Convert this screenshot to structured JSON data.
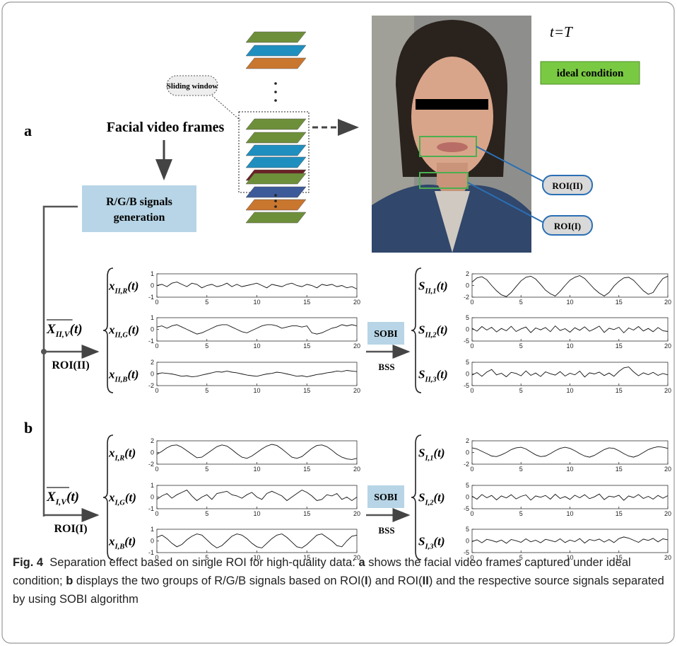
{
  "panel_a": {
    "label": "a",
    "facial_video_frames": "Facial video frames",
    "signals_generation": [
      "R/G/B signals",
      "generation"
    ],
    "sliding_window": "Sliding window",
    "time_label": "t=T",
    "ideal_condition": "ideal condition",
    "roi_2": "ROI(II)",
    "roi_1": "ROI(I)"
  },
  "panel_b": {
    "label": "b",
    "x": [
      0,
      0.5,
      1,
      1.5,
      2,
      2.5,
      3,
      3.5,
      4,
      4.5,
      5,
      5.5,
      6,
      6.5,
      7,
      7.5,
      8,
      8.5,
      9,
      9.5,
      10,
      10.5,
      11,
      11.5,
      12,
      12.5,
      13,
      13.5,
      14,
      14.5,
      15,
      15.5,
      16,
      16.5,
      17,
      17.5,
      18,
      18.5,
      19,
      19.5,
      20
    ],
    "groups": [
      {
        "input_label": {
          "symbol": "X",
          "sub": "II,V",
          "arg": "(t)"
        },
        "roi": "ROI(II)",
        "method": "SOBI",
        "bss": "BSS",
        "inputs": [
          {
            "label": {
              "symbol": "x",
              "sub": "II,R",
              "arg": "(t)"
            },
            "xlim": [
              0,
              20
            ],
            "xticks": [
              0,
              5,
              10,
              15,
              20
            ],
            "ylim": [
              -1,
              1
            ],
            "yticks": [
              -1,
              0,
              1
            ],
            "values": [
              0.0,
              0.1,
              -0.1,
              0.2,
              0.3,
              0.1,
              -0.1,
              0.2,
              0.1,
              -0.2,
              0.0,
              0.1,
              -0.1,
              0.0,
              0.2,
              -0.1,
              0.1,
              -0.1,
              0.0,
              0.1,
              0.2,
              0.0,
              -0.2,
              0.1,
              0.0,
              -0.1,
              0.1,
              0.2,
              0.0,
              -0.1,
              0.1,
              0.0,
              -0.2,
              0.1,
              0.0,
              0.1,
              -0.1,
              0.0,
              -0.2,
              -0.1,
              -0.3
            ]
          },
          {
            "label": {
              "symbol": "x",
              "sub": "II,G",
              "arg": "(t)"
            },
            "xlim": [
              0,
              20
            ],
            "xticks": [
              0,
              5,
              10,
              15,
              20
            ],
            "ylim": [
              -1,
              1
            ],
            "yticks": [
              -1,
              0,
              1
            ],
            "values": [
              0.2,
              0.3,
              0.1,
              0.3,
              0.4,
              0.2,
              0.0,
              -0.2,
              -0.4,
              -0.3,
              -0.1,
              0.1,
              0.3,
              0.4,
              0.4,
              0.2,
              0.0,
              -0.2,
              -0.3,
              -0.1,
              0.1,
              0.3,
              0.4,
              0.4,
              0.3,
              0.1,
              0.2,
              0.3,
              0.3,
              0.2,
              0.3,
              -0.3,
              -0.4,
              -0.3,
              -0.1,
              0.1,
              0.2,
              0.4,
              0.3,
              0.4,
              0.3
            ]
          },
          {
            "label": {
              "symbol": "x",
              "sub": "II,B",
              "arg": "(t)"
            },
            "xlim": [
              0,
              20
            ],
            "xticks": [
              0,
              5,
              10,
              15,
              20
            ],
            "ylim": [
              -2,
              2
            ],
            "yticks": [
              -2,
              0,
              2
            ],
            "values": [
              0.0,
              0.2,
              0.1,
              0.0,
              -0.2,
              -0.4,
              -0.3,
              -0.5,
              -0.4,
              -0.2,
              0.0,
              0.2,
              0.4,
              0.3,
              0.5,
              0.3,
              0.2,
              0.0,
              -0.2,
              -0.3,
              -0.4,
              -0.2,
              0.0,
              0.1,
              0.3,
              0.2,
              0.0,
              -0.2,
              -0.4,
              -0.3,
              -0.5,
              -0.3,
              -0.1,
              0.0,
              0.2,
              0.3,
              0.5,
              0.4,
              0.6,
              0.5,
              0.4
            ]
          }
        ],
        "sources": [
          {
            "label": {
              "symbol": "S",
              "sub": "II,1",
              "arg": "(t)"
            },
            "xlim": [
              0,
              20
            ],
            "xticks": [
              0,
              5,
              10,
              15,
              20
            ],
            "ylim": [
              -2,
              2
            ],
            "yticks": [
              -2,
              0,
              2
            ],
            "values": [
              0.6,
              1.3,
              1.5,
              1.0,
              0.0,
              -0.9,
              -1.6,
              -1.9,
              -1.2,
              -0.2,
              0.8,
              1.4,
              1.6,
              1.1,
              0.2,
              -0.8,
              -1.4,
              -1.8,
              -1.0,
              0.0,
              0.9,
              1.4,
              1.7,
              1.2,
              0.3,
              -0.6,
              -1.3,
              -1.8,
              -1.2,
              -0.1,
              0.7,
              1.3,
              1.4,
              0.9,
              0.0,
              -0.9,
              -1.5,
              -1.2,
              0.1,
              1.2,
              1.6
            ]
          },
          {
            "label": {
              "symbol": "S",
              "sub": "II,2",
              "arg": "(t)"
            },
            "xlim": [
              0,
              20
            ],
            "xticks": [
              0,
              5,
              10,
              15,
              20
            ],
            "ylim": [
              -5,
              5
            ],
            "yticks": [
              -5,
              0,
              5
            ],
            "values": [
              0.5,
              -0.8,
              1.2,
              -0.3,
              0.9,
              -1.1,
              0.4,
              -0.6,
              1.3,
              -0.9,
              0.2,
              1.0,
              -1.4,
              0.6,
              -0.2,
              0.8,
              -1.0,
              1.5,
              -0.5,
              0.3,
              -1.2,
              0.7,
              -0.4,
              1.1,
              -0.8,
              0.2,
              1.4,
              -1.3,
              0.5,
              -0.1,
              0.9,
              -1.5,
              0.6,
              -0.3,
              1.2,
              -0.7,
              0.4,
              -1.0,
              0.8,
              -0.6,
              -0.9
            ]
          },
          {
            "label": {
              "symbol": "S",
              "sub": "II,3",
              "arg": "(t)"
            },
            "xlim": [
              0,
              20
            ],
            "xticks": [
              0,
              5,
              10,
              15,
              20
            ],
            "ylim": [
              -5,
              5
            ],
            "yticks": [
              -5,
              0,
              5
            ],
            "values": [
              -0.5,
              0.6,
              -1.0,
              0.8,
              1.9,
              -0.4,
              0.3,
              -1.2,
              0.7,
              0.2,
              -0.8,
              1.3,
              -0.6,
              0.4,
              -1.1,
              0.9,
              0.1,
              -0.5,
              1.0,
              -0.9,
              0.3,
              -0.4,
              1.2,
              -1.3,
              0.5,
              0.0,
              0.8,
              -0.7,
              0.4,
              -1.0,
              1.1,
              2.6,
              3.0,
              0.9,
              -0.8,
              0.5,
              -0.3,
              0.7,
              -0.6,
              0.2,
              -0.4
            ]
          }
        ]
      },
      {
        "input_label": {
          "symbol": "X",
          "sub": "I,V",
          "arg": "(t)"
        },
        "roi": "ROI(I)",
        "method": "SOBI",
        "bss": "BSS",
        "inputs": [
          {
            "label": {
              "symbol": "x",
              "sub": "I,R",
              "arg": "(t)"
            },
            "xlim": [
              0,
              20
            ],
            "xticks": [
              0,
              5,
              10,
              15,
              20
            ],
            "ylim": [
              -2,
              2
            ],
            "yticks": [
              -2,
              0,
              2
            ],
            "values": [
              -0.3,
              0.2,
              0.8,
              1.2,
              1.3,
              0.9,
              0.3,
              -0.3,
              -0.9,
              -0.8,
              -0.2,
              0.4,
              1.0,
              1.3,
              1.1,
              0.5,
              -0.2,
              -0.8,
              -1.0,
              -0.6,
              0.0,
              0.6,
              1.1,
              1.4,
              1.2,
              0.6,
              -0.1,
              -0.8,
              -1.0,
              -0.7,
              0.0,
              0.7,
              1.2,
              1.3,
              1.0,
              0.4,
              -0.3,
              -0.8,
              -1.1,
              -1.2,
              -1.0
            ]
          },
          {
            "label": {
              "symbol": "x",
              "sub": "I,G",
              "arg": "(t)"
            },
            "xlim": [
              0,
              20
            ],
            "xticks": [
              0,
              5,
              10,
              15,
              20
            ],
            "ylim": [
              -1,
              1
            ],
            "yticks": [
              -1,
              0,
              1
            ],
            "values": [
              -0.2,
              0.1,
              0.3,
              -0.1,
              0.2,
              0.4,
              0.6,
              0.1,
              -0.3,
              0.0,
              0.2,
              -0.2,
              0.3,
              0.4,
              0.5,
              0.2,
              0.1,
              -0.1,
              0.2,
              0.4,
              0.0,
              -0.2,
              0.3,
              0.5,
              0.3,
              0.1,
              -0.3,
              0.0,
              0.3,
              0.6,
              0.4,
              0.1,
              -0.3,
              -0.2,
              0.2,
              0.1,
              0.3,
              -0.2,
              0.0,
              -0.3,
              0.0
            ]
          },
          {
            "label": {
              "symbol": "x",
              "sub": "I,B",
              "arg": "(t)"
            },
            "xlim": [
              0,
              20
            ],
            "xticks": [
              0,
              5,
              10,
              15,
              20
            ],
            "ylim": [
              -1,
              1
            ],
            "yticks": [
              -1,
              0,
              1
            ],
            "values": [
              0.3,
              0.5,
              0.2,
              -0.2,
              -0.5,
              -0.3,
              0.1,
              0.4,
              0.6,
              0.5,
              0.1,
              -0.3,
              -0.6,
              -0.4,
              0.0,
              0.4,
              0.6,
              0.5,
              0.2,
              -0.2,
              -0.5,
              -0.6,
              -0.2,
              0.2,
              0.5,
              0.6,
              0.3,
              -0.1,
              -0.5,
              -0.6,
              -0.3,
              0.1,
              0.5,
              0.6,
              0.3,
              0.0,
              -0.4,
              -0.5,
              0.0,
              0.4,
              0.5
            ]
          }
        ],
        "sources": [
          {
            "label": {
              "symbol": "S",
              "sub": "I,1",
              "arg": "(t)"
            },
            "xlim": [
              0,
              20
            ],
            "xticks": [
              0,
              5,
              10,
              15,
              20
            ],
            "ylim": [
              -2,
              2
            ],
            "yticks": [
              -2,
              0,
              2
            ],
            "values": [
              0.8,
              0.6,
              0.2,
              -0.2,
              -0.6,
              -0.7,
              -0.4,
              0.0,
              0.5,
              0.8,
              0.9,
              0.6,
              0.1,
              -0.4,
              -0.7,
              -0.6,
              -0.2,
              0.3,
              0.7,
              0.9,
              0.7,
              0.3,
              -0.2,
              -0.6,
              -0.8,
              -0.5,
              0.0,
              0.5,
              0.8,
              0.7,
              0.3,
              -0.2,
              -0.6,
              -0.8,
              -0.5,
              0.0,
              0.5,
              0.8,
              1.0,
              0.9,
              0.7
            ]
          },
          {
            "label": {
              "symbol": "S",
              "sub": "I,2",
              "arg": "(t)"
            },
            "xlim": [
              0,
              20
            ],
            "xticks": [
              0,
              5,
              10,
              15,
              20
            ],
            "ylim": [
              -5,
              5
            ],
            "yticks": [
              -5,
              0,
              5
            ],
            "values": [
              0.4,
              -0.9,
              1.1,
              -0.3,
              0.7,
              -1.2,
              0.5,
              -0.4,
              1.0,
              -0.8,
              0.3,
              0.9,
              -1.3,
              0.5,
              -0.1,
              0.7,
              -0.9,
              1.2,
              -0.6,
              0.2,
              -1.0,
              0.8,
              -0.3,
              1.0,
              -0.7,
              0.1,
              1.3,
              -1.1,
              0.4,
              0.0,
              0.8,
              -1.4,
              0.5,
              -0.2,
              1.1,
              -0.6,
              0.3,
              -0.9,
              0.7,
              -0.5,
              0.6
            ]
          },
          {
            "label": {
              "symbol": "S",
              "sub": "I,3",
              "arg": "(t)"
            },
            "xlim": [
              0,
              20
            ],
            "xticks": [
              0,
              5,
              10,
              15,
              20
            ],
            "ylim": [
              -5,
              5
            ],
            "yticks": [
              -5,
              0,
              5
            ],
            "values": [
              -0.3,
              0.5,
              -0.8,
              0.7,
              0.2,
              -0.5,
              0.4,
              -1.0,
              0.6,
              0.1,
              -0.6,
              0.9,
              -0.4,
              0.3,
              -0.8,
              0.7,
              0.2,
              -0.4,
              0.9,
              -0.7,
              0.4,
              -0.3,
              1.0,
              -0.9,
              0.6,
              0.1,
              0.8,
              -0.5,
              0.6,
              -0.7,
              1.0,
              1.7,
              1.2,
              0.3,
              -0.6,
              0.8,
              0.2,
              1.1,
              -0.4,
              0.9,
              0.5
            ]
          }
        ]
      }
    ]
  },
  "caption": [
    {
      "text": "Fig. 4",
      "bold": true
    },
    {
      "text": "  Separation effect based on single ROI for high-quality data: ",
      "bold": false
    },
    {
      "text": "a",
      "bold": true
    },
    {
      "text": " shows the facial video frames captured under ideal condition; ",
      "bold": false
    },
    {
      "text": "b",
      "bold": true
    },
    {
      "text": " displays the two groups of R/G/B signals based on ROI(",
      "bold": false
    },
    {
      "text": "I",
      "bold": true
    },
    {
      "text": ") and ROI(",
      "bold": false
    },
    {
      "text": "II",
      "bold": true
    },
    {
      "text": ") and the respective source signals separated by using SOBI algorithm",
      "bold": false
    }
  ]
}
